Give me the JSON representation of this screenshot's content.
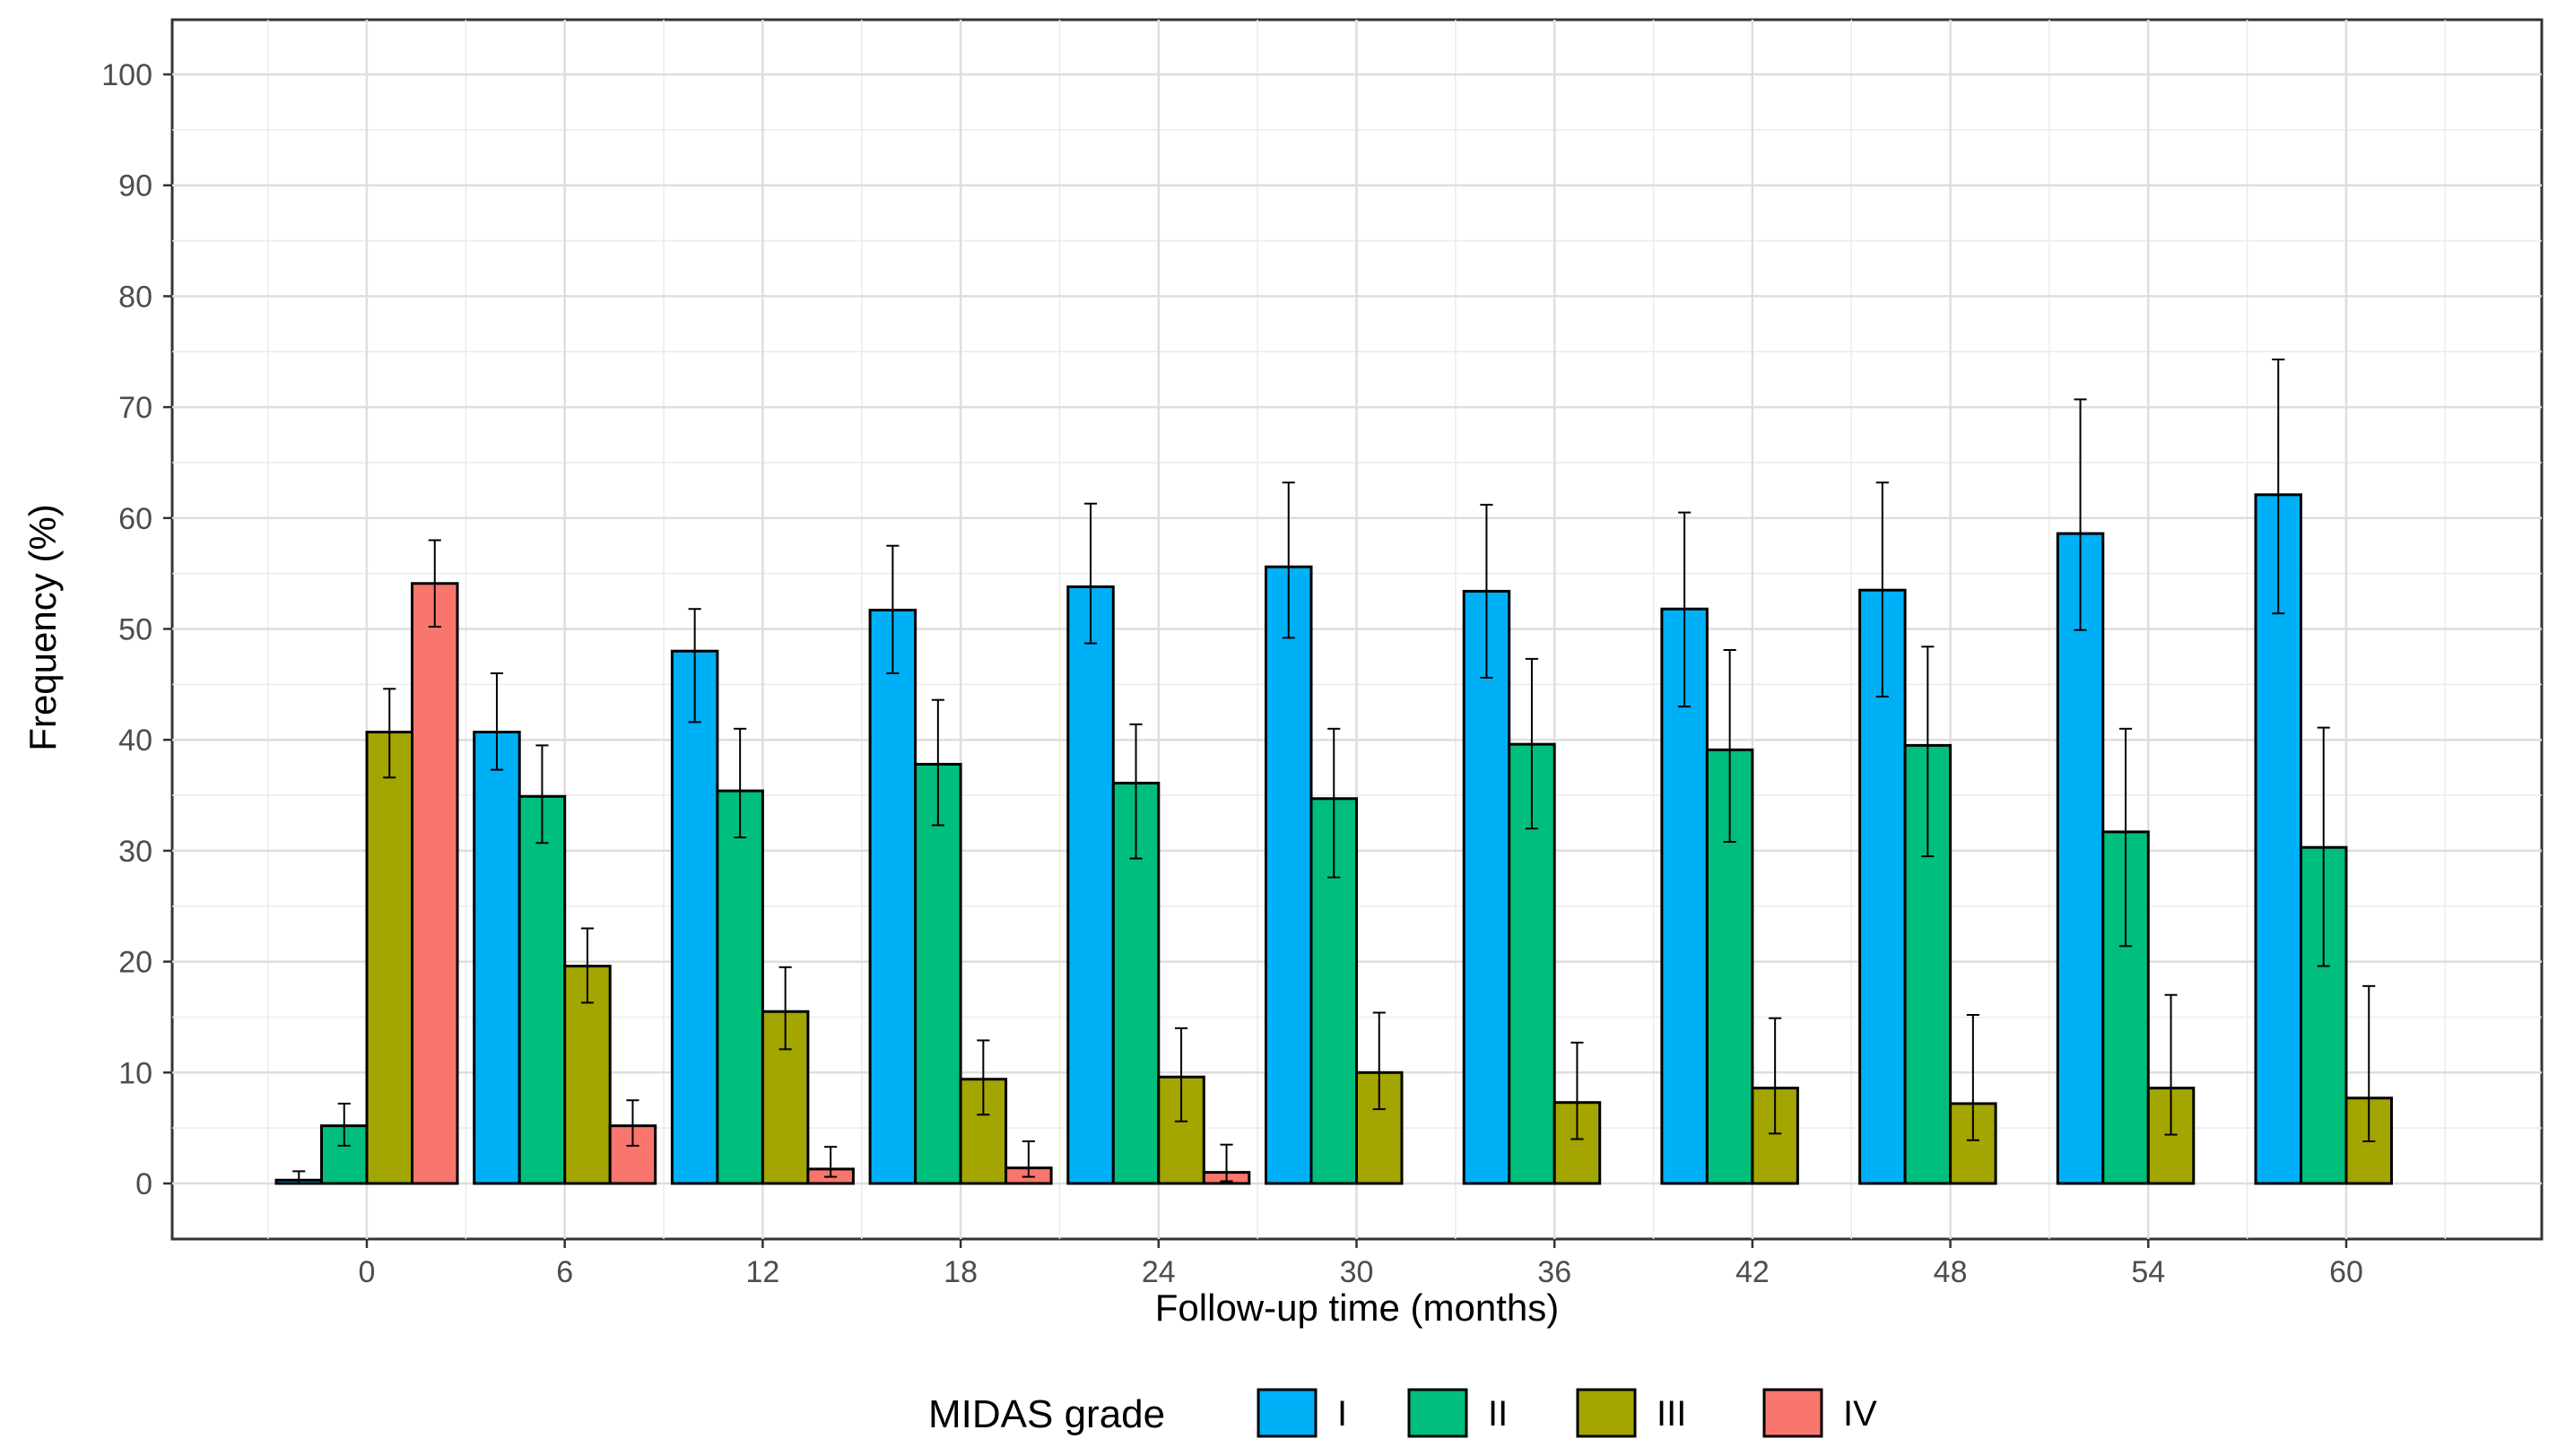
{
  "chart_data": {
    "type": "bar",
    "title": "",
    "xlabel": "Follow-up time (months)",
    "ylabel": "Frequency (%)",
    "ylim": [
      -5,
      105
    ],
    "yticks": [
      0,
      10,
      20,
      30,
      40,
      50,
      60,
      70,
      80,
      90,
      100
    ],
    "y_tick_labels": [
      "0",
      "10",
      "20",
      "30",
      "40",
      "50",
      "60",
      "70",
      "80",
      "90",
      "100"
    ],
    "categories": [
      "0",
      "6",
      "12",
      "18",
      "24",
      "30",
      "36",
      "42",
      "48",
      "54",
      "60"
    ],
    "grid": true,
    "legend": {
      "title": "MIDAS grade",
      "position": "bottom"
    },
    "colors": {
      "I": "#00B0F6",
      "II": "#00BF7D",
      "III": "#A3A500",
      "IV": "#F8766D"
    },
    "series": [
      {
        "name": "I",
        "values": [
          null,
          40.7,
          48.0,
          51.7,
          53.8,
          55.6,
          53.4,
          51.8,
          53.5,
          58.6,
          62.1
        ],
        "err_low": [
          null,
          37.3,
          41.6,
          46.0,
          48.7,
          49.2,
          45.6,
          43.0,
          43.9,
          49.9,
          51.4
        ],
        "err_high": [
          null,
          46.0,
          51.8,
          57.5,
          61.3,
          63.2,
          61.2,
          60.5,
          63.2,
          70.7,
          74.3
        ]
      },
      {
        "name": "II",
        "values": [
          5.2,
          34.9,
          35.4,
          37.8,
          36.1,
          34.7,
          39.6,
          39.1,
          39.5,
          31.7,
          30.3
        ],
        "err_low": [
          3.4,
          30.7,
          31.2,
          32.3,
          29.3,
          27.6,
          32.0,
          30.8,
          29.5,
          21.4,
          19.6
        ],
        "err_high": [
          7.2,
          39.5,
          41.0,
          43.6,
          41.4,
          41.0,
          47.3,
          48.1,
          48.4,
          41.0,
          41.1
        ]
      },
      {
        "name": "III",
        "values": [
          40.7,
          19.6,
          15.5,
          9.4,
          9.6,
          10.0,
          7.3,
          8.6,
          7.2,
          8.6,
          7.7
        ],
        "err_low": [
          36.6,
          16.3,
          12.1,
          6.2,
          5.6,
          6.7,
          4.0,
          4.5,
          3.9,
          4.4,
          3.8
        ],
        "err_high": [
          44.6,
          23.0,
          19.5,
          12.9,
          14.0,
          15.4,
          12.7,
          14.9,
          15.2,
          17.0,
          17.8
        ]
      },
      {
        "name": "IV",
        "values": [
          54.1,
          5.2,
          1.3,
          1.4,
          1.0,
          null,
          null,
          null,
          null,
          null,
          null
        ],
        "err_low": [
          50.2,
          3.4,
          0.6,
          0.6,
          0.2,
          null,
          null,
          null,
          null,
          null,
          null
        ],
        "err_high": [
          58.0,
          7.5,
          3.3,
          3.8,
          3.5,
          null,
          null,
          null,
          null,
          null,
          null
        ]
      }
    ],
    "extra_bars": [
      {
        "category": "0",
        "series": "I",
        "value": 0.3,
        "err_low": 0.0,
        "err_high": 1.1
      }
    ]
  }
}
